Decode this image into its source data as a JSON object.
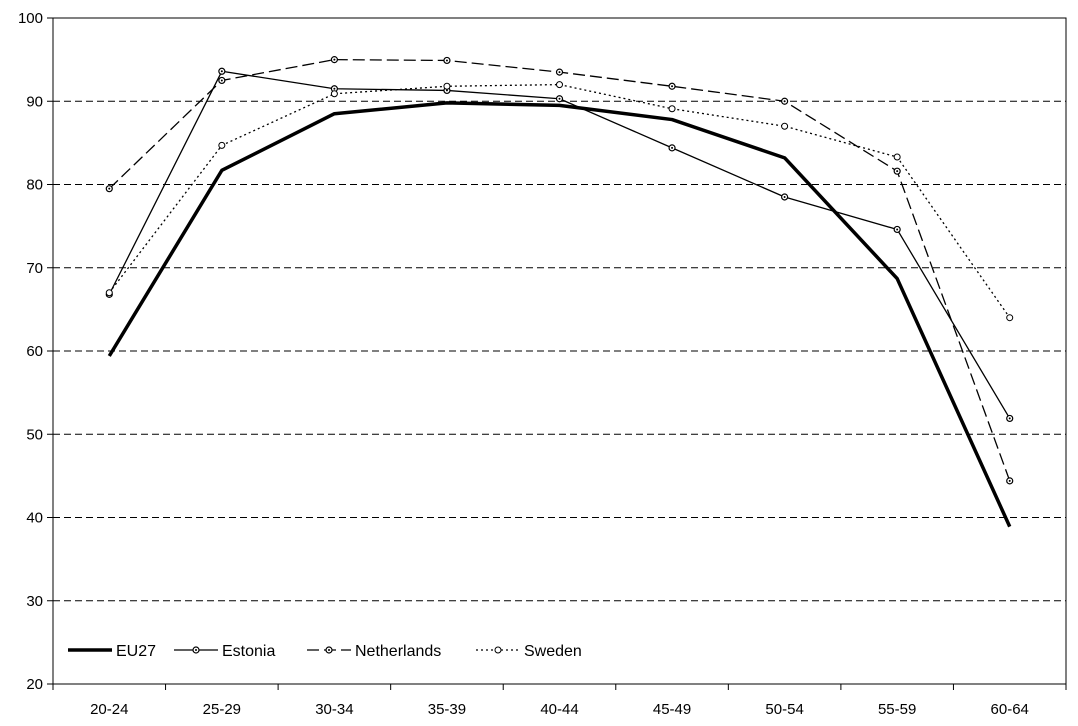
{
  "chart_data": {
    "type": "line",
    "title": "",
    "xlabel": "",
    "ylabel": "",
    "categories": [
      "20-24",
      "25-29",
      "30-34",
      "35-39",
      "40-44",
      "45-49",
      "50-54",
      "55-59",
      "60-64"
    ],
    "ylim": [
      20,
      100
    ],
    "yticks": [
      20,
      30,
      40,
      50,
      60,
      70,
      80,
      90,
      100
    ],
    "grid": "horizontal dashed",
    "legend_position": "bottom-left",
    "series": [
      {
        "name": "EU27",
        "values": [
          59.4,
          81.7,
          88.5,
          89.8,
          89.5,
          87.8,
          83.2,
          68.7,
          38.9
        ],
        "color": "#000000",
        "line_style": "solid",
        "line_weight": "thick",
        "marker": "none"
      },
      {
        "name": "Estonia",
        "values": [
          66.8,
          93.6,
          91.5,
          91.3,
          90.3,
          84.4,
          78.5,
          74.6,
          51.9
        ],
        "color": "#000000",
        "line_style": "solid",
        "line_weight": "thin",
        "marker": "circle"
      },
      {
        "name": "Netherlands",
        "values": [
          79.5,
          92.5,
          95.0,
          94.9,
          93.5,
          91.8,
          90.0,
          81.6,
          44.4
        ],
        "color": "#000000",
        "line_style": "dashed",
        "line_weight": "thin",
        "marker": "circle"
      },
      {
        "name": "Sweden",
        "values": [
          67.0,
          84.7,
          90.9,
          91.8,
          92.0,
          89.1,
          87.0,
          83.3,
          64.0
        ],
        "color": "#000000",
        "line_style": "dotted",
        "line_weight": "thin",
        "marker": "open-circle"
      }
    ]
  }
}
